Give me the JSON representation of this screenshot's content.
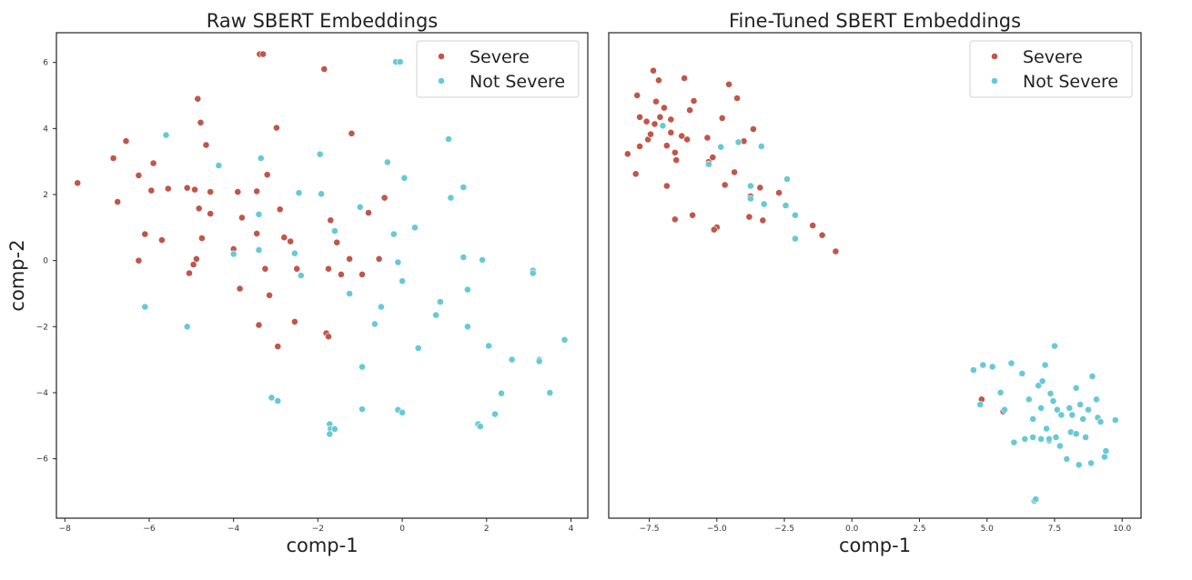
{
  "colors": {
    "severe": "#c0564a",
    "not_severe": "#68c9d6",
    "frame": "#222222"
  },
  "chart_data": [
    {
      "type": "scatter",
      "title": "Raw SBERT Embeddings",
      "xlabel": "comp-1",
      "ylabel": "comp-2",
      "xlim": [
        -8.2,
        4.4
      ],
      "ylim": [
        -7.8,
        6.9
      ],
      "xticks": [
        -8,
        -6,
        -4,
        -2,
        0,
        2,
        4
      ],
      "yticks": [
        -6,
        -4,
        -2,
        0,
        2,
        4,
        6
      ],
      "legend_position": "top-right",
      "series": [
        {
          "name": "Severe",
          "color": "#c0564a",
          "points": [
            [
              -7.7,
              2.35
            ],
            [
              -6.85,
              3.1
            ],
            [
              -6.75,
              1.78
            ],
            [
              -6.55,
              3.62
            ],
            [
              -6.25,
              2.58
            ],
            [
              -6.25,
              0.0
            ],
            [
              -6.1,
              0.8
            ],
            [
              -5.95,
              2.12
            ],
            [
              -5.9,
              2.95
            ],
            [
              -5.7,
              0.62
            ],
            [
              -5.55,
              2.18
            ],
            [
              -5.1,
              2.2
            ],
            [
              -5.05,
              -0.38
            ],
            [
              -4.95,
              -0.12
            ],
            [
              -4.92,
              2.15
            ],
            [
              -4.88,
              0.05
            ],
            [
              -4.85,
              4.9
            ],
            [
              -4.82,
              1.58
            ],
            [
              -4.78,
              4.18
            ],
            [
              -4.75,
              0.68
            ],
            [
              -4.65,
              3.5
            ],
            [
              -4.55,
              1.42
            ],
            [
              -4.55,
              2.08
            ],
            [
              -4.0,
              0.35
            ],
            [
              -3.9,
              2.08
            ],
            [
              -3.85,
              -0.85
            ],
            [
              -3.8,
              1.3
            ],
            [
              -3.45,
              0.82
            ],
            [
              -3.45,
              2.1
            ],
            [
              -3.4,
              -1.95
            ],
            [
              -3.38,
              6.25
            ],
            [
              -3.3,
              6.25
            ],
            [
              -3.25,
              -0.25
            ],
            [
              -3.2,
              2.6
            ],
            [
              -3.15,
              -1.05
            ],
            [
              -2.98,
              4.02
            ],
            [
              -2.95,
              -2.6
            ],
            [
              -2.9,
              1.55
            ],
            [
              -2.8,
              0.7
            ],
            [
              -2.65,
              0.58
            ],
            [
              -2.55,
              -1.85
            ],
            [
              -2.5,
              -0.25
            ],
            [
              -1.85,
              5.8
            ],
            [
              -1.8,
              -2.2
            ],
            [
              -1.75,
              -0.25
            ],
            [
              -1.75,
              -2.3
            ],
            [
              -1.7,
              1.22
            ],
            [
              -1.55,
              0.55
            ],
            [
              -1.45,
              -0.42
            ],
            [
              -1.2,
              3.85
            ],
            [
              -1.25,
              0.05
            ],
            [
              -0.95,
              -0.42
            ],
            [
              -0.8,
              1.45
            ],
            [
              -0.55,
              0.05
            ],
            [
              -0.42,
              1.9
            ]
          ]
        },
        {
          "name": "Not Severe",
          "color": "#68c9d6",
          "points": [
            [
              -6.1,
              -1.4
            ],
            [
              -5.6,
              3.8
            ],
            [
              -5.1,
              -2.0
            ],
            [
              -4.35,
              2.88
            ],
            [
              -4.0,
              0.2
            ],
            [
              -3.4,
              1.4
            ],
            [
              -3.35,
              3.1
            ],
            [
              -3.4,
              0.32
            ],
            [
              -3.1,
              -4.15
            ],
            [
              -2.95,
              -4.25
            ],
            [
              -2.55,
              0.22
            ],
            [
              -2.45,
              2.05
            ],
            [
              -2.4,
              -0.45
            ],
            [
              -1.95,
              3.22
            ],
            [
              -1.92,
              2.02
            ],
            [
              -1.72,
              -4.95
            ],
            [
              -1.7,
              -5.1
            ],
            [
              -1.72,
              -5.25
            ],
            [
              -1.6,
              0.9
            ],
            [
              -1.6,
              -5.1
            ],
            [
              -1.25,
              -1.0
            ],
            [
              -1.0,
              1.62
            ],
            [
              -0.95,
              -4.5
            ],
            [
              -0.95,
              -3.22
            ],
            [
              -0.65,
              -1.92
            ],
            [
              -0.5,
              -1.4
            ],
            [
              -0.35,
              2.98
            ],
            [
              -0.2,
              0.8
            ],
            [
              -0.15,
              6.02
            ],
            [
              -0.1,
              -4.52
            ],
            [
              -0.1,
              -0.05
            ],
            [
              -0.05,
              6.02
            ],
            [
              0.0,
              -0.62
            ],
            [
              0.0,
              -4.6
            ],
            [
              0.05,
              2.5
            ],
            [
              0.3,
              1.0
            ],
            [
              0.38,
              -2.65
            ],
            [
              0.8,
              -1.65
            ],
            [
              0.9,
              -1.25
            ],
            [
              1.1,
              3.68
            ],
            [
              1.15,
              1.9
            ],
            [
              1.45,
              2.22
            ],
            [
              1.45,
              0.1
            ],
            [
              1.55,
              -2.0
            ],
            [
              1.55,
              -0.88
            ],
            [
              1.8,
              -4.95
            ],
            [
              1.85,
              -5.02
            ],
            [
              1.9,
              0.02
            ],
            [
              2.05,
              -2.58
            ],
            [
              2.2,
              -4.65
            ],
            [
              2.35,
              -4.02
            ],
            [
              2.6,
              -3.0
            ],
            [
              3.1,
              -0.3
            ],
            [
              3.1,
              -0.38
            ],
            [
              3.25,
              -3.0
            ],
            [
              3.25,
              -3.05
            ],
            [
              3.5,
              -4.0
            ],
            [
              3.85,
              -2.4
            ]
          ]
        }
      ]
    },
    {
      "type": "scatter",
      "title": "Fine-Tuned SBERT Embeddings",
      "xlabel": "comp-1",
      "ylabel": "",
      "xlim": [
        -9.0,
        10.7
      ],
      "ylim": [
        -7.5,
        6.6
      ],
      "xticks": [
        -7.5,
        -5.0,
        -2.5,
        0.0,
        2.5,
        5.0,
        7.5,
        10.0
      ],
      "xtick_labels": [
        "−7.5",
        "−5.0",
        "−2.5",
        "0.0",
        "2.5",
        "5.0",
        "7.5",
        "10.0"
      ],
      "yticks": [],
      "legend_position": "top-right",
      "series": [
        {
          "name": "Severe",
          "color": "#c0564a",
          "points": [
            [
              -8.3,
              3.08
            ],
            [
              -8.0,
              2.5
            ],
            [
              -7.95,
              4.78
            ],
            [
              -7.85,
              4.15
            ],
            [
              -7.85,
              3.3
            ],
            [
              -7.6,
              4.02
            ],
            [
              -7.55,
              3.5
            ],
            [
              -7.45,
              3.65
            ],
            [
              -7.35,
              5.5
            ],
            [
              -7.3,
              3.95
            ],
            [
              -7.25,
              4.6
            ],
            [
              -7.15,
              5.22
            ],
            [
              -7.1,
              4.15
            ],
            [
              -6.95,
              4.42
            ],
            [
              -6.85,
              3.32
            ],
            [
              -6.85,
              2.15
            ],
            [
              -6.7,
              4.08
            ],
            [
              -6.7,
              3.7
            ],
            [
              -6.55,
              3.12
            ],
            [
              -6.5,
              2.9
            ],
            [
              -6.55,
              1.18
            ],
            [
              -6.3,
              3.6
            ],
            [
              -6.2,
              5.28
            ],
            [
              -6.1,
              3.5
            ],
            [
              -6.0,
              4.35
            ],
            [
              -5.9,
              1.3
            ],
            [
              -5.85,
              4.62
            ],
            [
              -5.35,
              3.55
            ],
            [
              -5.3,
              2.85
            ],
            [
              -5.15,
              2.98
            ],
            [
              -5.0,
              0.95
            ],
            [
              -5.1,
              0.88
            ],
            [
              -4.8,
              4.12
            ],
            [
              -4.7,
              2.18
            ],
            [
              -4.55,
              5.1
            ],
            [
              -4.35,
              2.55
            ],
            [
              -4.25,
              4.7
            ],
            [
              -4.0,
              3.45
            ],
            [
              -3.8,
              1.25
            ],
            [
              -3.75,
              1.85
            ],
            [
              -3.65,
              3.8
            ],
            [
              -3.4,
              2.1
            ],
            [
              -3.3,
              1.15
            ],
            [
              -2.7,
              1.95
            ],
            [
              -1.45,
              1.0
            ],
            [
              -1.1,
              0.72
            ],
            [
              -0.6,
              0.25
            ],
            [
              4.8,
              -4.05
            ],
            [
              5.6,
              -4.4
            ]
          ]
        },
        {
          "name": "Not Severe",
          "color": "#68c9d6",
          "points": [
            [
              -7.0,
              3.9
            ],
            [
              -5.3,
              2.78
            ],
            [
              -4.85,
              3.28
            ],
            [
              -4.2,
              3.42
            ],
            [
              -3.75,
              2.15
            ],
            [
              -3.75,
              1.78
            ],
            [
              -3.35,
              3.3
            ],
            [
              -3.25,
              1.62
            ],
            [
              -2.4,
              2.35
            ],
            [
              -2.45,
              1.58
            ],
            [
              -2.1,
              1.3
            ],
            [
              -2.1,
              0.62
            ],
            [
              4.5,
              -3.2
            ],
            [
              4.75,
              -4.2
            ],
            [
              4.85,
              -3.05
            ],
            [
              5.2,
              -3.1
            ],
            [
              5.5,
              -3.85
            ],
            [
              5.65,
              -4.35
            ],
            [
              5.9,
              -3.0
            ],
            [
              6.0,
              -5.3
            ],
            [
              6.3,
              -3.3
            ],
            [
              6.4,
              -5.2
            ],
            [
              6.55,
              -4.05
            ],
            [
              6.7,
              -5.15
            ],
            [
              6.7,
              -4.62
            ],
            [
              6.75,
              -7.0
            ],
            [
              6.8,
              -6.95
            ],
            [
              6.9,
              -3.65
            ],
            [
              7.0,
              -4.3
            ],
            [
              7.0,
              -5.2
            ],
            [
              7.05,
              -3.52
            ],
            [
              7.15,
              -3.05
            ],
            [
              7.2,
              -4.9
            ],
            [
              7.3,
              -5.25
            ],
            [
              7.3,
              -5.2
            ],
            [
              7.35,
              -3.88
            ],
            [
              7.45,
              -4.1
            ],
            [
              7.5,
              -2.5
            ],
            [
              7.55,
              -5.15
            ],
            [
              7.6,
              -4.35
            ],
            [
              7.7,
              -5.4
            ],
            [
              7.75,
              -4.5
            ],
            [
              7.95,
              -5.78
            ],
            [
              8.05,
              -4.3
            ],
            [
              8.15,
              -4.5
            ],
            [
              8.1,
              -5.0
            ],
            [
              8.3,
              -5.05
            ],
            [
              8.3,
              -3.72
            ],
            [
              8.4,
              -5.95
            ],
            [
              8.45,
              -4.2
            ],
            [
              8.55,
              -4.62
            ],
            [
              8.65,
              -5.15
            ],
            [
              8.75,
              -4.35
            ],
            [
              8.85,
              -5.9
            ],
            [
              8.9,
              -3.38
            ],
            [
              9.05,
              -4.05
            ],
            [
              9.1,
              -4.58
            ],
            [
              9.2,
              -4.7
            ],
            [
              9.35,
              -5.72
            ],
            [
              9.4,
              -5.55
            ],
            [
              9.75,
              -4.65
            ]
          ]
        }
      ]
    }
  ]
}
